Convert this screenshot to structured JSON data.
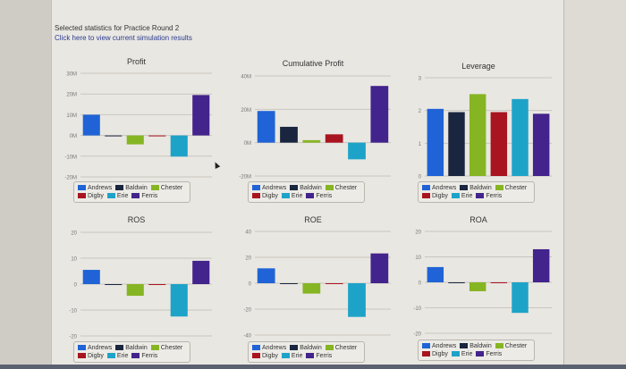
{
  "page": {
    "intro_line": "Selected statistics for Practice Round 2",
    "link_text": "Click here to view current simulation results"
  },
  "colors": {
    "Andrews": "#1f63d6",
    "Baldwin": "#1a2640",
    "Chester": "#86b523",
    "Digby": "#a8141f",
    "Erie": "#1ea3c8",
    "Ferris": "#43238c",
    "gridline": "#c9c6bf",
    "axis_text": "#777777"
  },
  "legend": {
    "row1": [
      "Andrews",
      "Baldwin",
      "Chester"
    ],
    "row2": [
      "Digby",
      "Erie",
      "Ferris"
    ]
  },
  "chart_data": [
    {
      "id": "profit",
      "type": "bar",
      "title": "Profit",
      "categories": [
        "Andrews",
        "Baldwin",
        "Chester",
        "Digby",
        "Erie",
        "Ferris"
      ],
      "values": [
        10,
        0,
        -4.3,
        -0.3,
        -10.2,
        19.5
      ],
      "ylim": [
        -20,
        30
      ],
      "yticks": [
        30,
        20,
        10,
        0,
        -10,
        -20
      ],
      "ytick_labels": [
        "30M",
        "20M",
        "10M",
        "0M",
        "-10M",
        "-20M"
      ],
      "grid": true,
      "legend": "bottom"
    },
    {
      "id": "cumprofit",
      "type": "bar",
      "title": "Cumulative Profit",
      "categories": [
        "Andrews",
        "Baldwin",
        "Chester",
        "Digby",
        "Erie",
        "Ferris"
      ],
      "values": [
        19,
        9.5,
        1.5,
        5,
        -10,
        34
      ],
      "ylim": [
        -20,
        40
      ],
      "yticks": [
        40,
        20,
        0,
        -20
      ],
      "ytick_labels": [
        "40M",
        "20M",
        "0M",
        "-20M"
      ],
      "grid": true,
      "legend": "bottom"
    },
    {
      "id": "leverage",
      "type": "bar",
      "title": "Leverage",
      "categories": [
        "Andrews",
        "Baldwin",
        "Chester",
        "Digby",
        "Erie",
        "Ferris"
      ],
      "values": [
        2.05,
        1.95,
        2.5,
        1.95,
        2.35,
        1.9
      ],
      "ylim": [
        0,
        3
      ],
      "yticks": [
        3,
        2,
        1,
        0
      ],
      "ytick_labels": [
        "3",
        "2",
        "1",
        "0"
      ],
      "grid": true,
      "legend": "bottom"
    },
    {
      "id": "ros",
      "type": "bar",
      "title": "ROS",
      "categories": [
        "Andrews",
        "Baldwin",
        "Chester",
        "Digby",
        "Erie",
        "Ferris"
      ],
      "values": [
        5.5,
        0,
        -4.5,
        0,
        -12.5,
        9
      ],
      "ylim": [
        -20,
        20
      ],
      "yticks": [
        20,
        10,
        0,
        -10,
        -20
      ],
      "ytick_labels": [
        "20",
        "10",
        "0",
        "-10",
        "-20"
      ],
      "grid": true,
      "legend": "bottom"
    },
    {
      "id": "roe",
      "type": "bar",
      "title": "ROE",
      "categories": [
        "Andrews",
        "Baldwin",
        "Chester",
        "Digby",
        "Erie",
        "Ferris"
      ],
      "values": [
        11.5,
        0,
        -8,
        -0.5,
        -26,
        23
      ],
      "ylim": [
        -40,
        40
      ],
      "yticks": [
        40,
        20,
        0,
        -20,
        -40
      ],
      "ytick_labels": [
        "40",
        "20",
        "0",
        "-20",
        "-40"
      ],
      "grid": true,
      "legend": "bottom"
    },
    {
      "id": "roa",
      "type": "bar",
      "title": "ROA",
      "categories": [
        "Andrews",
        "Baldwin",
        "Chester",
        "Digby",
        "Erie",
        "Ferris"
      ],
      "values": [
        6,
        0,
        -3.5,
        0,
        -12,
        13
      ],
      "ylim": [
        -20,
        20
      ],
      "yticks": [
        20,
        10,
        0,
        -10,
        -20
      ],
      "ytick_labels": [
        "20",
        "10",
        "0",
        "-10",
        "-20"
      ],
      "grid": true,
      "legend": "bottom"
    }
  ]
}
